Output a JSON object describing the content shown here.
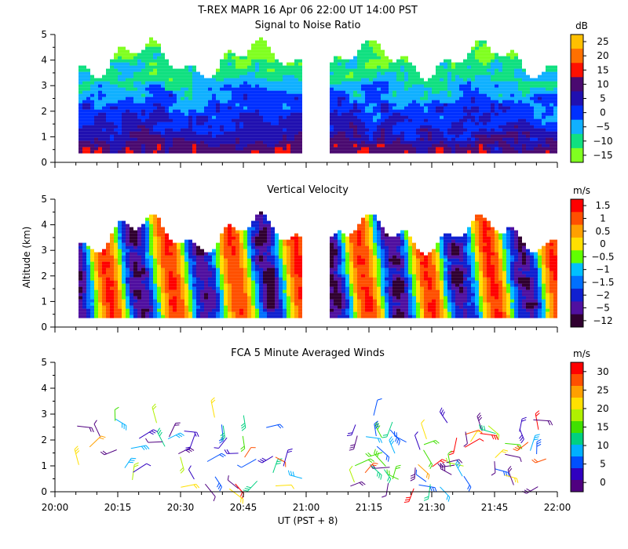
{
  "chart_data": {
    "type": "heatmap",
    "title": "T-REX   MAPR 16 Apr 06   22:00 UT   14:00   PST",
    "xlabel": "UT  (PST + 8)",
    "ylabel": "Altitude (km)",
    "x_ticks": [
      "20:00",
      "20:15",
      "20:30",
      "20:45",
      "21:00",
      "21:15",
      "21:30",
      "21:45",
      "22:00"
    ],
    "y_ticks": [
      "0",
      "1",
      "2",
      "3",
      "4",
      "5"
    ],
    "ylim": [
      0,
      5
    ],
    "data_gap": [
      "21:00",
      "21:05"
    ],
    "panels": [
      {
        "title": "Signal to Noise Ratio",
        "units": "dB",
        "kind": "field",
        "colorbar_labels": [
          "25",
          "20",
          "15",
          "10",
          "5",
          "0",
          "−5",
          "−10",
          "−15"
        ],
        "colors": [
          "#ffc000",
          "#ff7000",
          "#ff1000",
          "#4a0a70",
          "#2010b0",
          "#0030ff",
          "#10b0ff",
          "#10e080",
          "#80ff20"
        ]
      },
      {
        "title": "Vertical Velocity",
        "units": "m/s",
        "kind": "field",
        "colorbar_labels": [
          "1.5",
          "1",
          "0.5",
          "0",
          "−0.5",
          "−1",
          "−1.5",
          "−2",
          "−5",
          "−12"
        ],
        "colors": [
          "#ff0000",
          "#ff5000",
          "#ffa000",
          "#ffe000",
          "#60ff00",
          "#00c0ff",
          "#0070ff",
          "#1020d0",
          "#5010a0",
          "#300030"
        ]
      },
      {
        "title": "FCA 5 Minute Averaged Winds",
        "units": "m/s",
        "kind": "barbs",
        "colorbar_labels": [
          "30",
          "25",
          "20",
          "15",
          "10",
          "5",
          "0"
        ],
        "colors": [
          "#ff0000",
          "#ff5000",
          "#ffa000",
          "#ffe000",
          "#b0f000",
          "#40e000",
          "#00d080",
          "#00b0ff",
          "#0050ff",
          "#3000c0",
          "#500080"
        ]
      }
    ]
  }
}
